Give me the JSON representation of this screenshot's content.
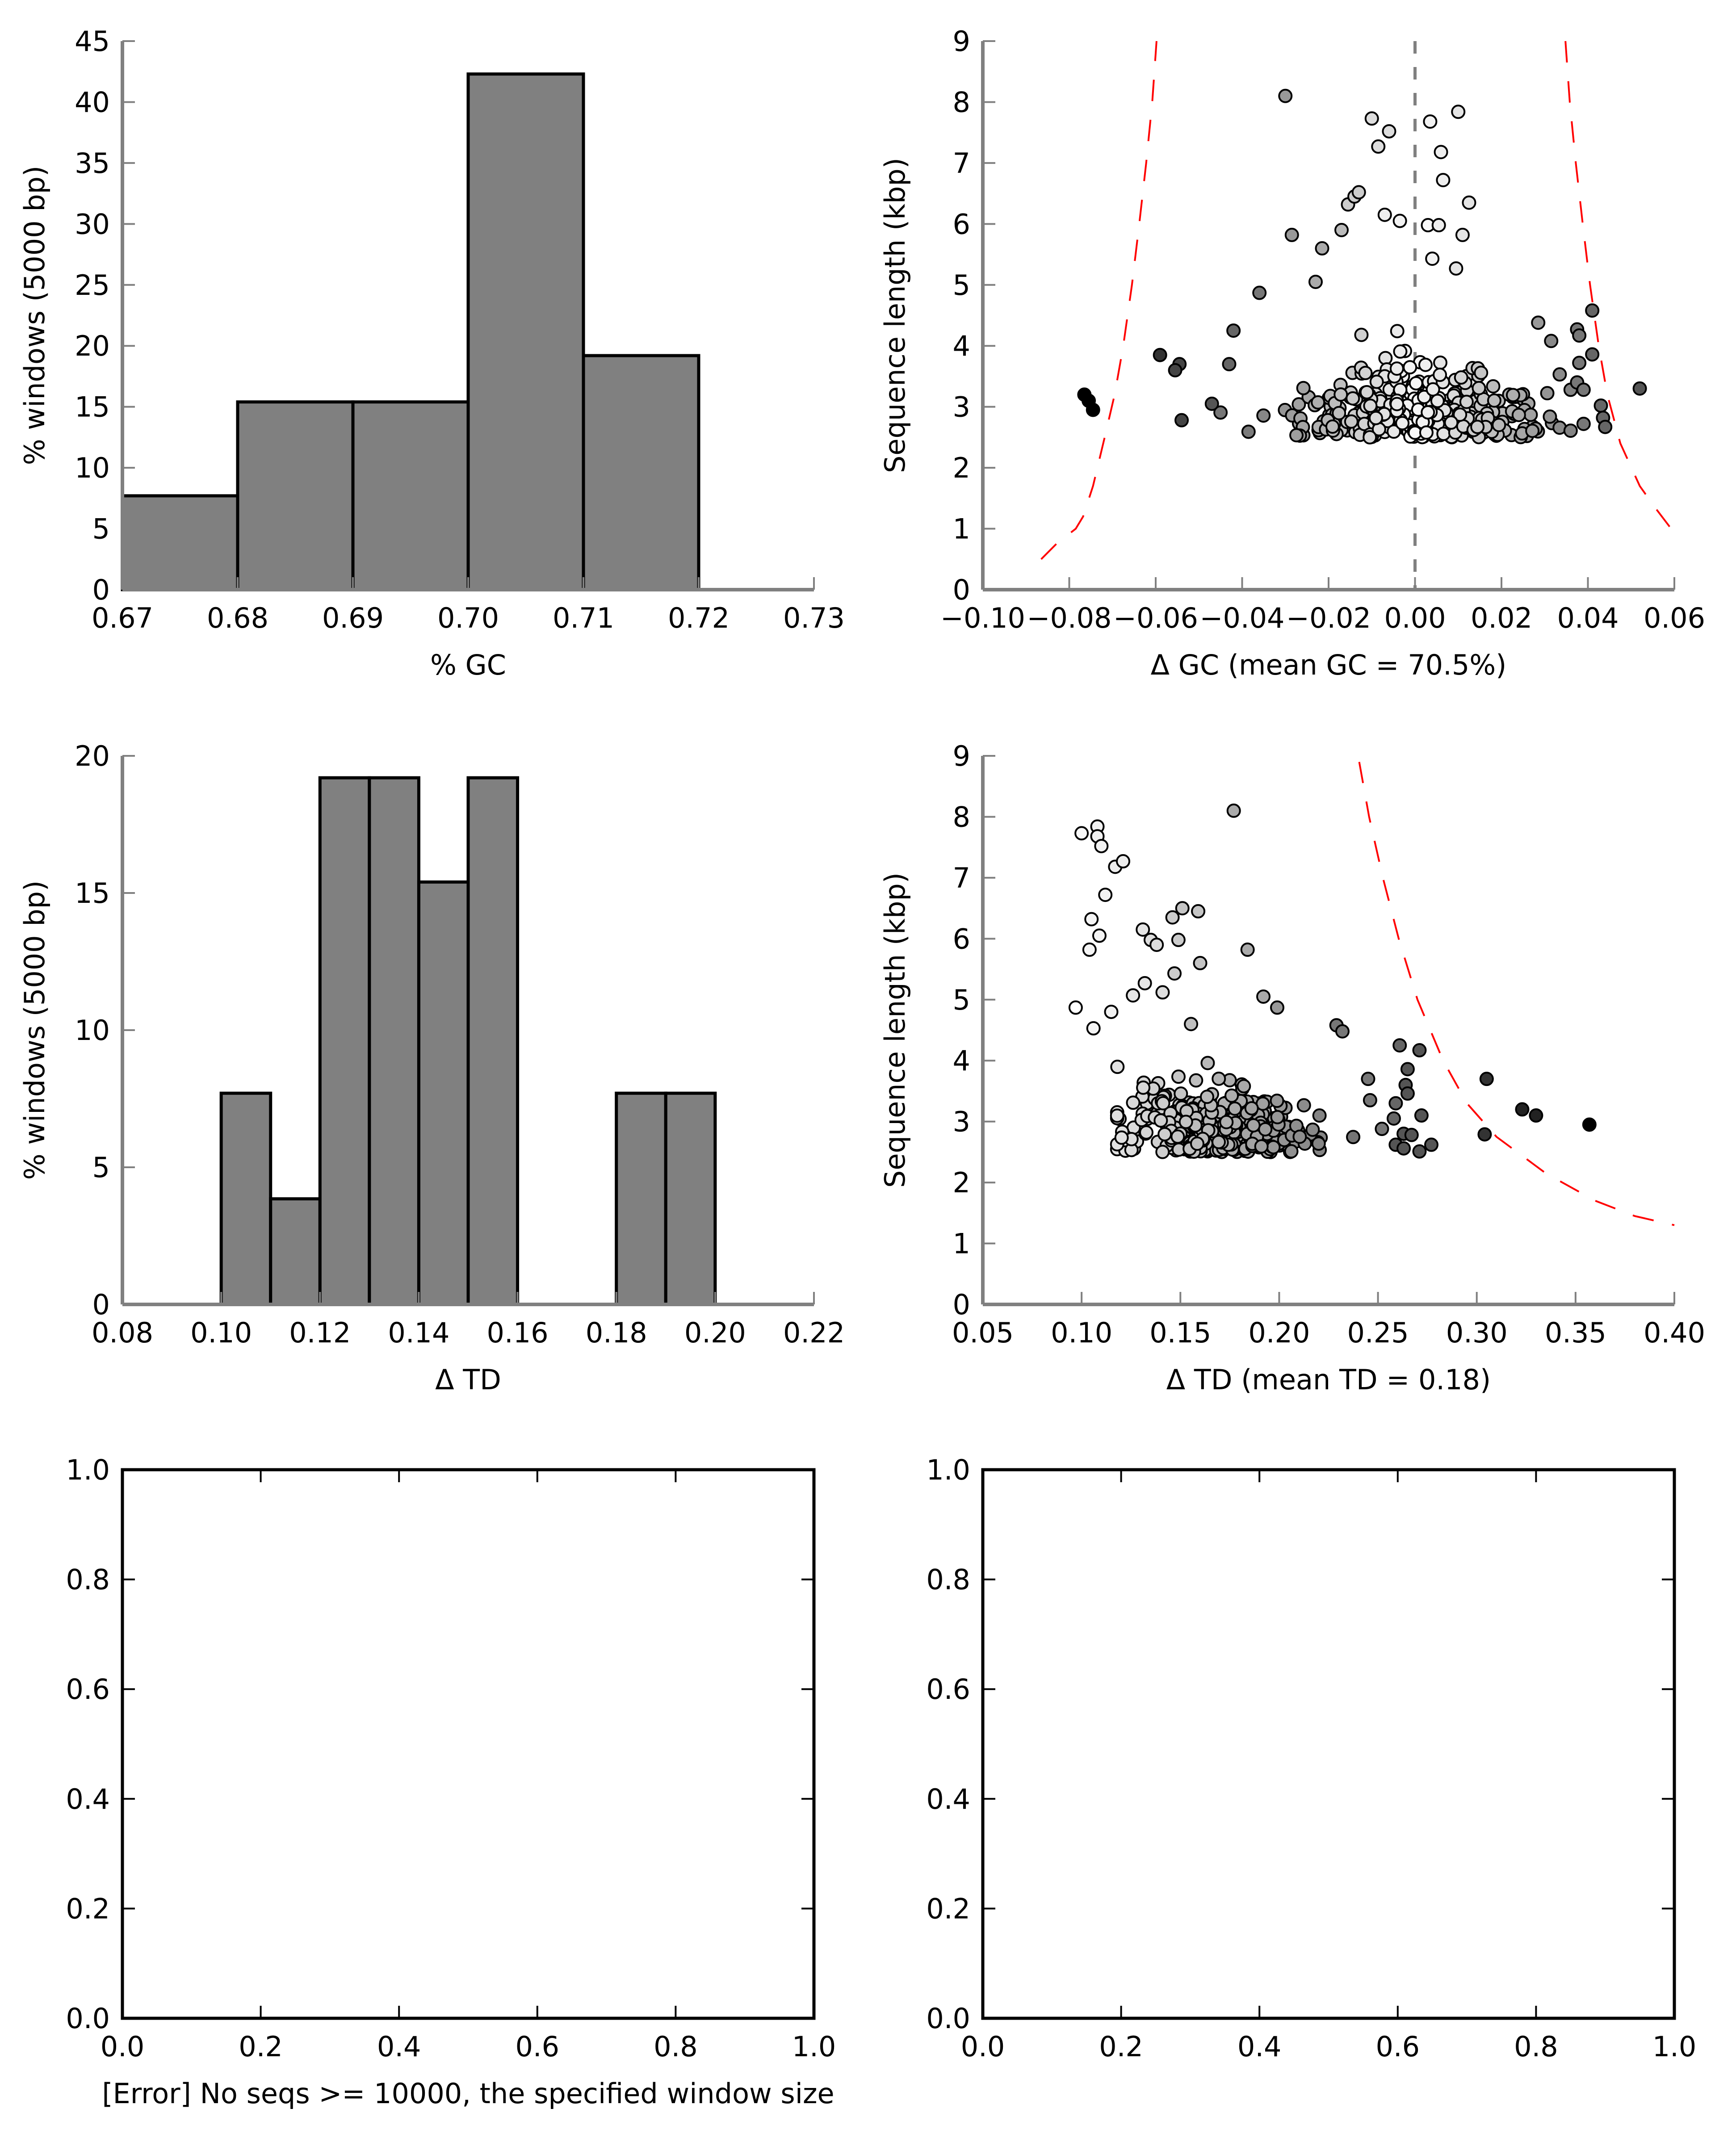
{
  "chart_data": [
    {
      "id": "gc-hist",
      "type": "bar",
      "title": "",
      "xlabel": "% GC",
      "ylabel": "% windows (5000 bp)",
      "xlim": [
        0.67,
        0.73
      ],
      "ylim": [
        0,
        45
      ],
      "xticks": [
        "0.67",
        "0.68",
        "0.69",
        "0.70",
        "0.71",
        "0.72",
        "0.73"
      ],
      "xtick_values": [
        0.67,
        0.68,
        0.69,
        0.7,
        0.71,
        0.72,
        0.73
      ],
      "yticks": [
        "0",
        "5",
        "10",
        "15",
        "20",
        "25",
        "30",
        "35",
        "40",
        "45"
      ],
      "ytick_values": [
        0,
        5,
        10,
        15,
        20,
        25,
        30,
        35,
        40,
        45
      ],
      "bins": [
        {
          "x0": 0.67,
          "x1": 0.68,
          "value": 7.7
        },
        {
          "x0": 0.68,
          "x1": 0.69,
          "value": 15.4
        },
        {
          "x0": 0.69,
          "x1": 0.7,
          "value": 15.4
        },
        {
          "x0": 0.7,
          "x1": 0.71,
          "value": 42.3
        },
        {
          "x0": 0.71,
          "x1": 0.72,
          "value": 19.2
        }
      ],
      "bar_color": "#808080",
      "grid": false
    },
    {
      "id": "gc-scatter",
      "type": "scatter",
      "title": "",
      "xlabel": "Δ GC (mean GC = 70.5%)",
      "ylabel": "Sequence length (kbp)",
      "xlim": [
        -0.1,
        0.06
      ],
      "ylim": [
        0,
        9
      ],
      "xticks": [
        "−0.10",
        "−0.08",
        "−0.06",
        "−0.04",
        "−0.02",
        "0.00",
        "0.02",
        "0.04",
        "0.06"
      ],
      "xtick_values": [
        -0.1,
        -0.08,
        -0.06,
        -0.04,
        -0.02,
        0.0,
        0.02,
        0.04,
        0.06
      ],
      "yticks": [
        "0",
        "1",
        "2",
        "3",
        "4",
        "5",
        "6",
        "7",
        "8",
        "9"
      ],
      "ytick_values": [
        0,
        1,
        2,
        3,
        4,
        5,
        6,
        7,
        8,
        9
      ],
      "mean_line": {
        "x": 0.0,
        "color": "#808080",
        "style": "dashed"
      },
      "threshold_curves": [
        {
          "color": "#ff0000",
          "style": "dashed",
          "points": [
            [
              -0.0865,
              0.5
            ],
            [
              -0.083,
              0.75
            ],
            [
              -0.0785,
              1.0
            ],
            [
              -0.0768,
              1.2
            ],
            [
              -0.0745,
              1.7
            ],
            [
              -0.0718,
              2.5
            ],
            [
              -0.0695,
              3.2
            ],
            [
              -0.0675,
              4.0
            ],
            [
              -0.0655,
              5.0
            ],
            [
              -0.0638,
              6.0
            ],
            [
              -0.0622,
              7.0
            ],
            [
              -0.0608,
              8.0
            ],
            [
              -0.0598,
              9.0
            ]
          ]
        },
        {
          "color": "#ff0000",
          "style": "dashed",
          "points": [
            [
              0.0348,
              9.0
            ],
            [
              0.0358,
              8.0
            ],
            [
              0.0372,
              7.0
            ],
            [
              0.0388,
              6.0
            ],
            [
              0.0405,
              5.0
            ],
            [
              0.0425,
              4.0
            ],
            [
              0.0445,
              3.2
            ],
            [
              0.0475,
              2.4
            ],
            [
              0.052,
              1.7
            ],
            [
              0.0555,
              1.35
            ],
            [
              0.0598,
              0.95
            ]
          ]
        }
      ],
      "outlier_points": [
        {
          "x": -0.0765,
          "y": 3.2,
          "shade": "#000000"
        },
        {
          "x": -0.0755,
          "y": 3.1,
          "shade": "#000000"
        },
        {
          "x": -0.0745,
          "y": 2.95,
          "shade": "#000000"
        },
        {
          "x": -0.059,
          "y": 3.85,
          "shade": "#333333"
        },
        {
          "x": -0.0545,
          "y": 3.7,
          "shade": "#444444"
        },
        {
          "x": -0.0555,
          "y": 3.6,
          "shade": "#444444"
        },
        {
          "x": -0.054,
          "y": 2.78,
          "shade": "#444444"
        },
        {
          "x": -0.047,
          "y": 3.05,
          "shade": "#555555"
        },
        {
          "x": -0.043,
          "y": 3.7,
          "shade": "#666666"
        },
        {
          "x": -0.042,
          "y": 4.25,
          "shade": "#666666"
        },
        {
          "x": -0.036,
          "y": 4.87,
          "shade": "#777777"
        },
        {
          "x": -0.03,
          "y": 8.1,
          "shade": "#999999"
        },
        {
          "x": -0.0285,
          "y": 5.82,
          "shade": "#999999"
        },
        {
          "x": -0.023,
          "y": 5.05,
          "shade": "#aaaaaa"
        },
        {
          "x": -0.0215,
          "y": 5.6,
          "shade": "#aaaaaa"
        },
        {
          "x": -0.017,
          "y": 5.9,
          "shade": "#bbbbbb"
        },
        {
          "x": -0.0155,
          "y": 6.32,
          "shade": "#cccccc"
        },
        {
          "x": -0.014,
          "y": 6.45,
          "shade": "#cccccc"
        },
        {
          "x": -0.013,
          "y": 6.52,
          "shade": "#cccccc"
        },
        {
          "x": -0.01,
          "y": 7.73,
          "shade": "#dddddd"
        },
        {
          "x": -0.0085,
          "y": 7.27,
          "shade": "#dddddd"
        },
        {
          "x": -0.007,
          "y": 6.15,
          "shade": "#eeeeee"
        },
        {
          "x": -0.006,
          "y": 7.52,
          "shade": "#dddddd"
        },
        {
          "x": -0.0035,
          "y": 6.05,
          "shade": "#f2f2f2"
        },
        {
          "x": 0.0035,
          "y": 7.68,
          "shade": "#f2f2f2"
        },
        {
          "x": 0.003,
          "y": 5.98,
          "shade": "#f8f8f8"
        },
        {
          "x": 0.006,
          "y": 7.18,
          "shade": "#eeeeee"
        },
        {
          "x": 0.0065,
          "y": 6.72,
          "shade": "#eeeeee"
        },
        {
          "x": 0.0055,
          "y": 5.98,
          "shade": "#eeeeee"
        },
        {
          "x": 0.004,
          "y": 5.43,
          "shade": "#f2f2f2"
        },
        {
          "x": 0.01,
          "y": 7.84,
          "shade": "#e5e5e5"
        },
        {
          "x": 0.0125,
          "y": 6.35,
          "shade": "#e5e5e5"
        },
        {
          "x": 0.011,
          "y": 5.82,
          "shade": "#e5e5e5"
        },
        {
          "x": 0.0095,
          "y": 5.27,
          "shade": "#e5e5e5"
        },
        {
          "x": 0.0285,
          "y": 4.38,
          "shade": "#999999"
        },
        {
          "x": 0.0315,
          "y": 4.08,
          "shade": "#888888"
        },
        {
          "x": 0.0375,
          "y": 4.27,
          "shade": "#777777"
        },
        {
          "x": 0.038,
          "y": 4.17,
          "shade": "#777777"
        },
        {
          "x": 0.041,
          "y": 4.58,
          "shade": "#666666"
        },
        {
          "x": 0.041,
          "y": 3.86,
          "shade": "#666666"
        },
        {
          "x": 0.038,
          "y": 3.72,
          "shade": "#777777"
        },
        {
          "x": 0.0375,
          "y": 3.4,
          "shade": "#777777"
        },
        {
          "x": 0.039,
          "y": 3.28,
          "shade": "#777777"
        },
        {
          "x": 0.043,
          "y": 3.02,
          "shade": "#666666"
        },
        {
          "x": 0.0435,
          "y": 2.82,
          "shade": "#666666"
        },
        {
          "x": 0.044,
          "y": 2.67,
          "shade": "#666666"
        },
        {
          "x": 0.039,
          "y": 2.72,
          "shade": "#777777"
        },
        {
          "x": 0.052,
          "y": 3.3,
          "shade": "#555555"
        }
      ],
      "cluster": {
        "x_range": [
          -0.045,
          0.036
        ],
        "y_range": [
          2.5,
          4.3
        ],
        "description": "dense cloud of several hundred windows; shading light near 0, darker toward edges"
      },
      "grid": false
    },
    {
      "id": "td-hist",
      "type": "bar",
      "title": "",
      "xlabel": "Δ TD",
      "ylabel": "% windows (5000 bp)",
      "xlim": [
        0.08,
        0.22
      ],
      "ylim": [
        0,
        20
      ],
      "xticks": [
        "0.08",
        "0.10",
        "0.12",
        "0.14",
        "0.16",
        "0.18",
        "0.20",
        "0.22"
      ],
      "xtick_values": [
        0.08,
        0.1,
        0.12,
        0.14,
        0.16,
        0.18,
        0.2,
        0.22
      ],
      "yticks": [
        "0",
        "5",
        "10",
        "15",
        "20"
      ],
      "ytick_values": [
        0,
        5,
        10,
        15,
        20
      ],
      "bins": [
        {
          "x0": 0.1,
          "x1": 0.11,
          "value": 7.7
        },
        {
          "x0": 0.11,
          "x1": 0.12,
          "value": 3.85
        },
        {
          "x0": 0.12,
          "x1": 0.13,
          "value": 19.2
        },
        {
          "x0": 0.13,
          "x1": 0.14,
          "value": 19.2
        },
        {
          "x0": 0.14,
          "x1": 0.15,
          "value": 15.4
        },
        {
          "x0": 0.15,
          "x1": 0.16,
          "value": 19.2
        },
        {
          "x0": 0.18,
          "x1": 0.19,
          "value": 7.7
        },
        {
          "x0": 0.19,
          "x1": 0.2,
          "value": 7.7
        }
      ],
      "bar_color": "#808080",
      "grid": false
    },
    {
      "id": "td-scatter",
      "type": "scatter",
      "title": "",
      "xlabel": "Δ TD (mean TD = 0.18)",
      "ylabel": "Sequence length (kbp)",
      "xlim": [
        0.05,
        0.4
      ],
      "ylim": [
        0,
        9
      ],
      "xticks": [
        "0.05",
        "0.10",
        "0.15",
        "0.20",
        "0.25",
        "0.30",
        "0.35",
        "0.40"
      ],
      "xtick_values": [
        0.05,
        0.1,
        0.15,
        0.2,
        0.25,
        0.3,
        0.35,
        0.4
      ],
      "yticks": [
        "0",
        "1",
        "2",
        "3",
        "4",
        "5",
        "6",
        "7",
        "8",
        "9"
      ],
      "ytick_values": [
        0,
        1,
        2,
        3,
        4,
        5,
        6,
        7,
        8,
        9
      ],
      "threshold_curves": [
        {
          "color": "#ff0000",
          "style": "dashed",
          "points": [
            [
              0.2405,
              8.9
            ],
            [
              0.2455,
              8.0
            ],
            [
              0.2525,
              7.0
            ],
            [
              0.2605,
              6.0
            ],
            [
              0.27,
              5.0
            ],
            [
              0.283,
              4.0
            ],
            [
              0.295,
              3.3
            ],
            [
              0.31,
              2.75
            ],
            [
              0.335,
              2.15
            ],
            [
              0.36,
              1.7
            ],
            [
              0.38,
              1.45
            ],
            [
              0.4,
              1.3
            ]
          ]
        }
      ],
      "outlier_points": [
        {
          "x": 0.097,
          "y": 4.87,
          "shade": "#ffffff"
        },
        {
          "x": 0.1,
          "y": 7.73,
          "shade": "#f8f8f8"
        },
        {
          "x": 0.104,
          "y": 5.82,
          "shade": "#f5f5f5"
        },
        {
          "x": 0.105,
          "y": 6.32,
          "shade": "#f5f5f5"
        },
        {
          "x": 0.106,
          "y": 4.53,
          "shade": "#f5f5f5"
        },
        {
          "x": 0.108,
          "y": 7.84,
          "shade": "#f2f2f2"
        },
        {
          "x": 0.108,
          "y": 7.68,
          "shade": "#f2f2f2"
        },
        {
          "x": 0.109,
          "y": 6.05,
          "shade": "#f5f5f5"
        },
        {
          "x": 0.11,
          "y": 7.52,
          "shade": "#f2f2f2"
        },
        {
          "x": 0.112,
          "y": 6.72,
          "shade": "#f2f2f2"
        },
        {
          "x": 0.115,
          "y": 4.8,
          "shade": "#f2f2f2"
        },
        {
          "x": 0.117,
          "y": 7.18,
          "shade": "#eeeeee"
        },
        {
          "x": 0.121,
          "y": 7.27,
          "shade": "#eeeeee"
        },
        {
          "x": 0.126,
          "y": 5.07,
          "shade": "#e5e5e5"
        },
        {
          "x": 0.131,
          "y": 6.15,
          "shade": "#e5e5e5"
        },
        {
          "x": 0.132,
          "y": 5.27,
          "shade": "#e5e5e5"
        },
        {
          "x": 0.135,
          "y": 5.98,
          "shade": "#dddddd"
        },
        {
          "x": 0.138,
          "y": 5.9,
          "shade": "#dddddd"
        },
        {
          "x": 0.141,
          "y": 5.12,
          "shade": "#dddddd"
        },
        {
          "x": 0.146,
          "y": 6.35,
          "shade": "#cccccc"
        },
        {
          "x": 0.147,
          "y": 5.43,
          "shade": "#cccccc"
        },
        {
          "x": 0.149,
          "y": 5.98,
          "shade": "#cccccc"
        },
        {
          "x": 0.151,
          "y": 6.5,
          "shade": "#c5c5c5"
        },
        {
          "x": 0.159,
          "y": 6.45,
          "shade": "#c5c5c5"
        },
        {
          "x": 0.16,
          "y": 5.6,
          "shade": "#c5c5c5"
        },
        {
          "x": 0.177,
          "y": 8.1,
          "shade": "#aaaaaa"
        },
        {
          "x": 0.184,
          "y": 5.82,
          "shade": "#aaaaaa"
        },
        {
          "x": 0.192,
          "y": 5.05,
          "shade": "#aaaaaa"
        },
        {
          "x": 0.199,
          "y": 4.87,
          "shade": "#999999"
        },
        {
          "x": 0.229,
          "y": 4.58,
          "shade": "#777777"
        },
        {
          "x": 0.232,
          "y": 4.48,
          "shade": "#777777"
        },
        {
          "x": 0.245,
          "y": 3.7,
          "shade": "#777777"
        },
        {
          "x": 0.246,
          "y": 3.35,
          "shade": "#777777"
        },
        {
          "x": 0.261,
          "y": 4.25,
          "shade": "#666666"
        },
        {
          "x": 0.271,
          "y": 4.17,
          "shade": "#555555"
        },
        {
          "x": 0.265,
          "y": 3.86,
          "shade": "#555555"
        },
        {
          "x": 0.264,
          "y": 3.6,
          "shade": "#555555"
        },
        {
          "x": 0.265,
          "y": 3.46,
          "shade": "#555555"
        },
        {
          "x": 0.259,
          "y": 3.3,
          "shade": "#666666"
        },
        {
          "x": 0.258,
          "y": 3.05,
          "shade": "#666666"
        },
        {
          "x": 0.272,
          "y": 3.1,
          "shade": "#555555"
        },
        {
          "x": 0.252,
          "y": 2.88,
          "shade": "#777777"
        },
        {
          "x": 0.263,
          "y": 2.8,
          "shade": "#555555"
        },
        {
          "x": 0.267,
          "y": 2.78,
          "shade": "#555555"
        },
        {
          "x": 0.259,
          "y": 2.62,
          "shade": "#555555"
        },
        {
          "x": 0.263,
          "y": 2.56,
          "shade": "#555555"
        },
        {
          "x": 0.271,
          "y": 2.51,
          "shade": "#555555"
        },
        {
          "x": 0.277,
          "y": 2.62,
          "shade": "#555555"
        },
        {
          "x": 0.305,
          "y": 3.7,
          "shade": "#333333"
        },
        {
          "x": 0.304,
          "y": 2.79,
          "shade": "#333333"
        },
        {
          "x": 0.323,
          "y": 3.2,
          "shade": "#222222"
        },
        {
          "x": 0.33,
          "y": 3.1,
          "shade": "#222222"
        },
        {
          "x": 0.357,
          "y": 2.95,
          "shade": "#000000"
        }
      ],
      "cluster": {
        "x_range": [
          0.118,
          0.245
        ],
        "y_range": [
          2.5,
          4.6
        ],
        "description": "dense cloud of several hundred windows; shading lightens toward low TD and darkens toward high TD"
      },
      "grid": false
    },
    {
      "id": "empty-left",
      "type": "scatter",
      "title": "",
      "xlabel": "[Error] No seqs >= 10000, the specified window size",
      "ylabel": "",
      "xlim": [
        0.0,
        1.0
      ],
      "ylim": [
        0.0,
        1.0
      ],
      "xticks": [
        "0.0",
        "0.2",
        "0.4",
        "0.6",
        "0.8",
        "1.0"
      ],
      "xtick_values": [
        0.0,
        0.2,
        0.4,
        0.6,
        0.8,
        1.0
      ],
      "yticks": [
        "0.0",
        "0.2",
        "0.4",
        "0.6",
        "0.8",
        "1.0"
      ],
      "ytick_values": [
        0.0,
        0.2,
        0.4,
        0.6,
        0.8,
        1.0
      ],
      "points": [],
      "grid": false
    },
    {
      "id": "empty-right",
      "type": "scatter",
      "title": "",
      "xlabel": "",
      "ylabel": "",
      "xlim": [
        0.0,
        1.0
      ],
      "ylim": [
        0.0,
        1.0
      ],
      "xticks": [
        "0.0",
        "0.2",
        "0.4",
        "0.6",
        "0.8",
        "1.0"
      ],
      "xtick_values": [
        0.0,
        0.2,
        0.4,
        0.6,
        0.8,
        1.0
      ],
      "yticks": [
        "0.0",
        "0.2",
        "0.4",
        "0.6",
        "0.8",
        "1.0"
      ],
      "ytick_values": [
        0.0,
        0.2,
        0.4,
        0.6,
        0.8,
        1.0
      ],
      "points": [],
      "grid": false
    }
  ]
}
